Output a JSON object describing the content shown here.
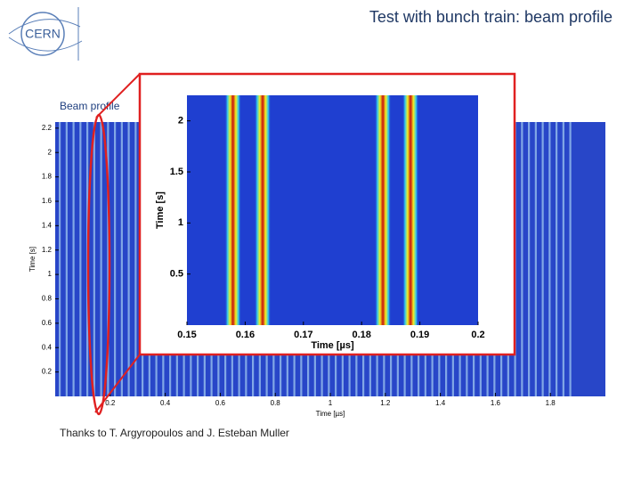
{
  "header": {
    "title": "Test with bunch train: beam profile",
    "logo": "CERN"
  },
  "label": "Beam profile",
  "footer": "Thanks to T. Argyropoulos and J. Esteban Muller",
  "chart_data": [
    {
      "type": "heatmap",
      "x_label": "Time [µs]",
      "y_label": "Time [s]",
      "xlim": [
        0,
        2.0
      ],
      "ylim": [
        0,
        2.25
      ],
      "xticks": [
        0.2,
        0.4,
        0.6,
        0.8,
        1,
        1.2,
        1.4,
        1.6,
        1.8
      ],
      "yticks": [
        0.2,
        0.4,
        0.6,
        0.8,
        1,
        1.2,
        1.4,
        1.6,
        1.8,
        2,
        2.2
      ]
    },
    {
      "type": "heatmap",
      "x_label": "Time [µs]",
      "y_label": "Time [s]",
      "xlim": [
        0.15,
        0.2
      ],
      "ylim": [
        0,
        2.25
      ],
      "xticks": [
        0.15,
        0.16,
        0.17,
        0.18,
        0.19,
        0.2
      ],
      "yticks": [
        0.5,
        1,
        1.5,
        2
      ]
    }
  ]
}
